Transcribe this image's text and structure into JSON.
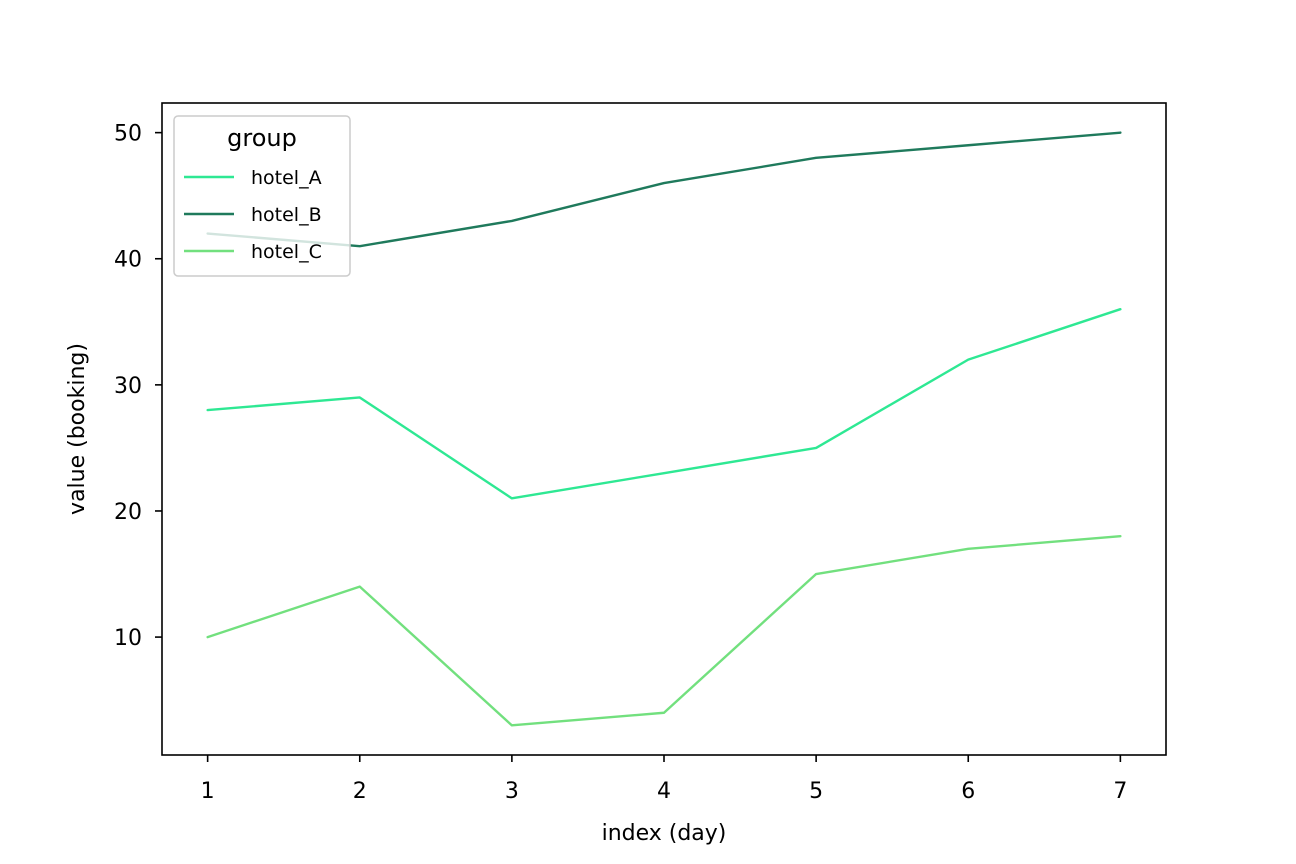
{
  "chart_data": {
    "type": "line",
    "title": "",
    "xlabel": "index (day)",
    "ylabel": "value (booking)",
    "x": [
      1,
      2,
      3,
      4,
      5,
      6,
      7
    ],
    "xlim": [
      0.7,
      7.3
    ],
    "ylim": [
      0.65,
      52.35
    ],
    "xticks": [
      1,
      2,
      3,
      4,
      5,
      6,
      7
    ],
    "yticks": [
      10,
      20,
      30,
      40,
      50
    ],
    "grid": false,
    "legend": {
      "title": "group",
      "placement": "top-left"
    },
    "series": [
      {
        "name": "hotel_A",
        "color": "#2ee893",
        "values": [
          28,
          29,
          21,
          23,
          25,
          32,
          36
        ]
      },
      {
        "name": "hotel_B",
        "color": "#1f7a5c",
        "values": [
          42,
          41,
          43,
          46,
          48,
          49,
          50
        ]
      },
      {
        "name": "hotel_C",
        "color": "#72e07e",
        "values": [
          10,
          14,
          3,
          4,
          15,
          17,
          18
        ]
      }
    ]
  }
}
